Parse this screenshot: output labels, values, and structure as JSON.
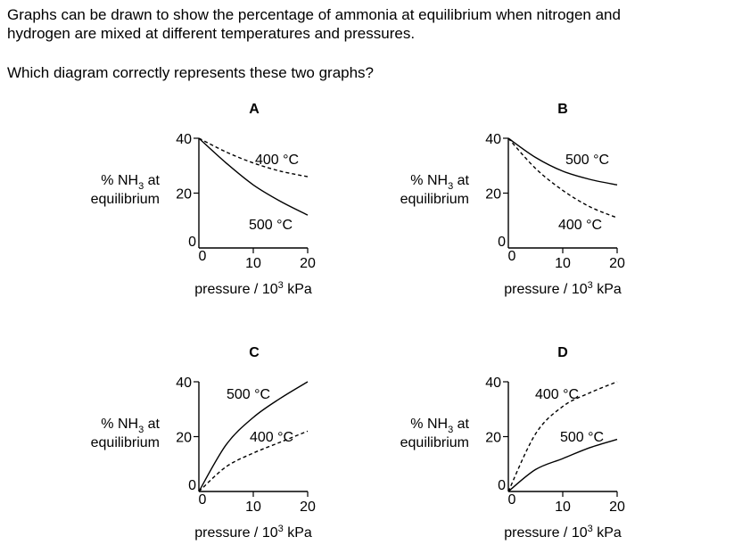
{
  "question": {
    "line1": "Graphs can be drawn to show the percentage of ammonia at equilibrium when nitrogen and",
    "line2": "hydrogen are mixed at different temperatures and pressures.",
    "prompt": "Which diagram correctly represents these two graphs?"
  },
  "axis_text": {
    "ylabel_prefix": "% NH",
    "ylabel_sub": "3",
    "ylabel_suffix": " at",
    "ylabel_line2": "equilibrium",
    "xlabel_prefix": "pressure / 10",
    "xlabel_sup": "3",
    "xlabel_suffix": " kPa",
    "y_ticks": [
      "0",
      "20",
      "40"
    ],
    "x_ticks": [
      "0",
      "10",
      "20"
    ]
  },
  "chart_data": [
    {
      "type": "line",
      "option": "A",
      "xlim": [
        0,
        20
      ],
      "ylim": [
        0,
        40
      ],
      "series": [
        {
          "name": "400 °C",
          "style": "dashed",
          "x": [
            0,
            5,
            10,
            15,
            20
          ],
          "y": [
            40,
            35,
            31,
            28,
            26
          ]
        },
        {
          "name": "500 °C",
          "style": "solid",
          "x": [
            0,
            5,
            10,
            15,
            20
          ],
          "y": [
            40,
            31,
            23,
            17,
            12
          ]
        }
      ]
    },
    {
      "type": "line",
      "option": "B",
      "xlim": [
        0,
        20
      ],
      "ylim": [
        0,
        40
      ],
      "series": [
        {
          "name": "500 °C",
          "style": "solid",
          "x": [
            0,
            5,
            10,
            15,
            20
          ],
          "y": [
            40,
            33,
            28,
            25,
            23
          ]
        },
        {
          "name": "400 °C",
          "style": "dashed",
          "x": [
            0,
            5,
            10,
            15,
            20
          ],
          "y": [
            40,
            29,
            21,
            15,
            11
          ]
        }
      ]
    },
    {
      "type": "line",
      "option": "C",
      "xlim": [
        0,
        20
      ],
      "ylim": [
        0,
        40
      ],
      "series": [
        {
          "name": "500 °C",
          "style": "solid",
          "x": [
            0,
            5,
            10,
            15,
            20
          ],
          "y": [
            0,
            17,
            27,
            34,
            40
          ]
        },
        {
          "name": "400 °C",
          "style": "dashed",
          "x": [
            0,
            5,
            10,
            15,
            20
          ],
          "y": [
            0,
            9,
            14,
            18,
            22
          ]
        }
      ]
    },
    {
      "type": "line",
      "option": "D",
      "xlim": [
        0,
        20
      ],
      "ylim": [
        0,
        40
      ],
      "series": [
        {
          "name": "400 °C",
          "style": "dashed",
          "x": [
            0,
            5,
            10,
            15,
            20
          ],
          "y": [
            0,
            21,
            31,
            36,
            40
          ]
        },
        {
          "name": "500 °C",
          "style": "solid",
          "x": [
            0,
            5,
            10,
            15,
            20
          ],
          "y": [
            0,
            8,
            12,
            16,
            19
          ]
        }
      ]
    }
  ]
}
